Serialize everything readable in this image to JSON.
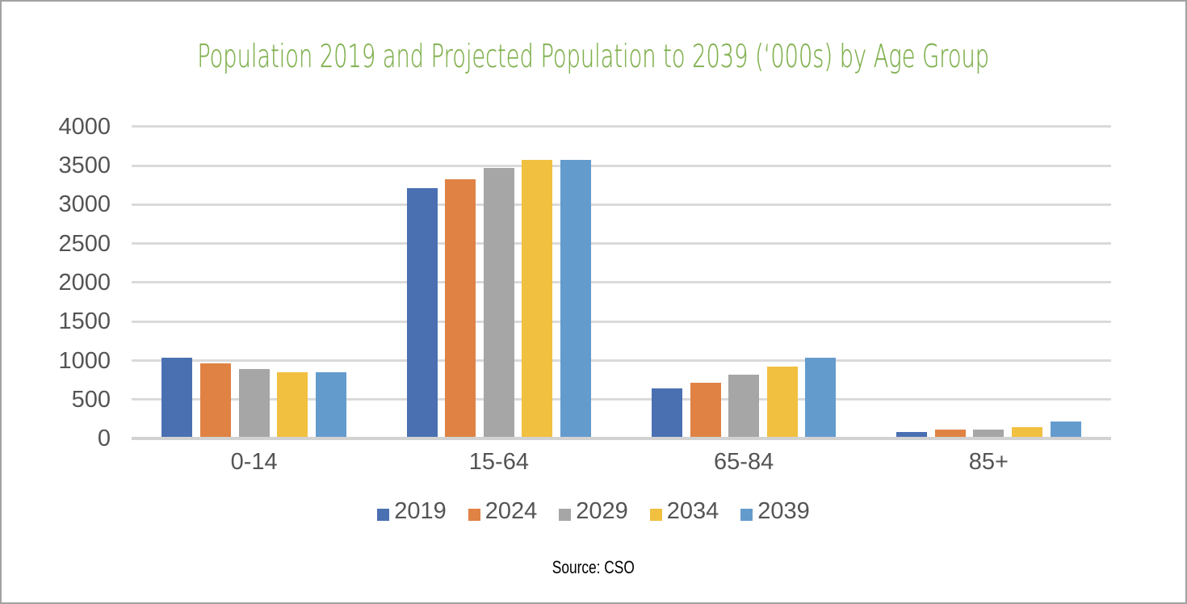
{
  "title": {
    "text": "Population 2019 and Projected Population to 2039 (‘000s) by Age Group",
    "color": "#7fb04d"
  },
  "source_note": "Source: CSO",
  "chart_data": {
    "type": "bar",
    "title": "Population 2019 and Projected Population to 2039 ('000s) by Age Group",
    "xlabel": "",
    "ylabel": "",
    "categories": [
      "0-14",
      "15-64",
      "65-84",
      "85+"
    ],
    "series": [
      {
        "name": "2019",
        "color": "#4a70b2",
        "values": [
          1035,
          3215,
          645,
          82
        ]
      },
      {
        "name": "2024",
        "color": "#df8244",
        "values": [
          960,
          3325,
          715,
          115
        ]
      },
      {
        "name": "2029",
        "color": "#a6a6a6",
        "values": [
          890,
          3465,
          820,
          113
        ]
      },
      {
        "name": "2034",
        "color": "#f1c040",
        "values": [
          855,
          3570,
          925,
          145
        ]
      },
      {
        "name": "2039",
        "color": "#649bcd",
        "values": [
          850,
          3570,
          1035,
          220
        ]
      }
    ],
    "ylim": [
      0,
      4000
    ],
    "ytick_interval": 500,
    "yticks": [
      0,
      500,
      1000,
      1500,
      2000,
      2500,
      3000,
      3500,
      4000
    ],
    "grid": "horizontal",
    "gridline_color": "#dadada",
    "axis_line_color": "#d2d2d2",
    "legend_position": "bottom",
    "legend_entries": [
      "2019",
      "2024",
      "2029",
      "2034",
      "2039"
    ],
    "source": "Source: CSO"
  }
}
